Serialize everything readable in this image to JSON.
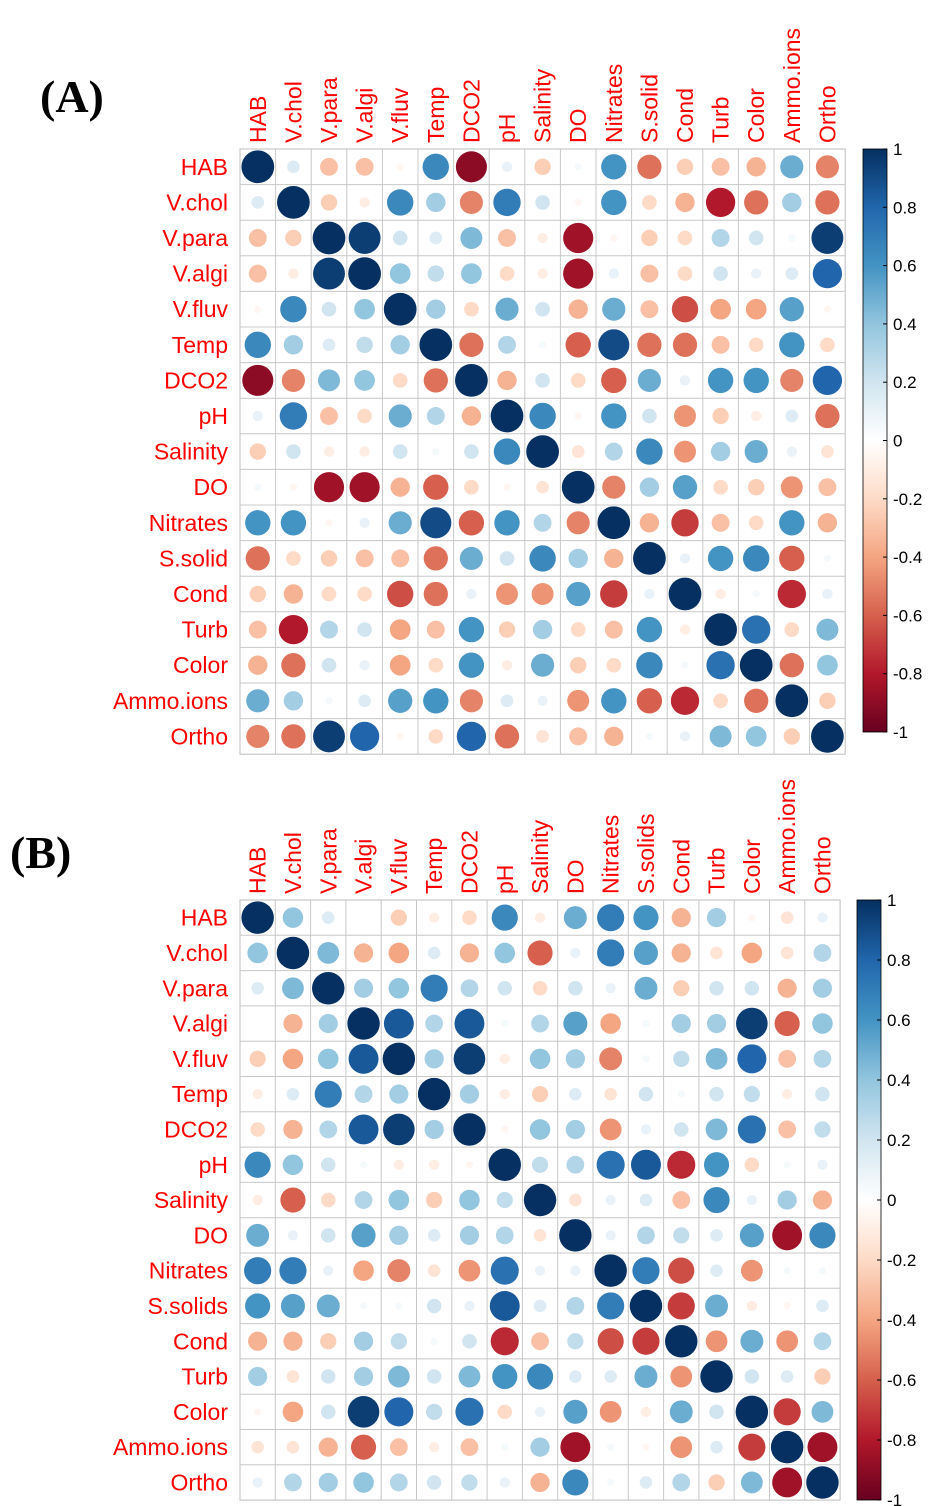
{
  "panels": [
    {
      "label": "(A)",
      "chart_data": {
        "type": "heatmap",
        "subtype": "correlation-circle-matrix",
        "columns": [
          "HAB",
          "V.chol",
          "V.para",
          "V.algi",
          "V.fluv",
          "Temp",
          "DCO2",
          "pH",
          "Salinity",
          "DO",
          "Nitrates",
          "S.solid",
          "Cond",
          "Turb",
          "Color",
          "Ammo.ions",
          "Ortho"
        ],
        "rows": [
          "HAB",
          "V.chol",
          "V.para",
          "V.algi",
          "V.fluv",
          "Temp",
          "DCO2",
          "pH",
          "Salinity",
          "DO",
          "Nitrates",
          "S.solid",
          "Cond",
          "Turb",
          "Color",
          "Ammo.ions",
          "Ortho"
        ],
        "values": [
          [
            1,
            0.15,
            -0.3,
            -0.3,
            -0.05,
            0.65,
            -0.9,
            0.1,
            -0.25,
            0.05,
            0.6,
            -0.55,
            -0.25,
            -0.3,
            -0.35,
            0.5,
            -0.5
          ],
          [
            0.15,
            1,
            -0.25,
            -0.1,
            0.65,
            0.35,
            -0.5,
            0.7,
            0.2,
            -0.05,
            0.6,
            -0.2,
            -0.35,
            -0.8,
            -0.55,
            0.35,
            -0.55
          ],
          [
            -0.3,
            -0.25,
            1,
            0.95,
            0.2,
            0.15,
            0.45,
            -0.3,
            -0.1,
            -0.85,
            -0.05,
            -0.25,
            -0.2,
            0.3,
            0.2,
            0.05,
            0.95
          ],
          [
            -0.3,
            -0.1,
            0.95,
            1,
            0.4,
            0.25,
            0.4,
            -0.2,
            -0.1,
            -0.85,
            0.1,
            -0.3,
            -0.2,
            0.2,
            0.1,
            0.15,
            0.8
          ],
          [
            -0.05,
            0.65,
            0.2,
            0.4,
            1,
            0.35,
            -0.2,
            0.5,
            0.2,
            -0.35,
            0.5,
            -0.3,
            -0.65,
            -0.4,
            -0.4,
            0.55,
            -0.05
          ],
          [
            0.65,
            0.35,
            0.15,
            0.25,
            0.35,
            1,
            -0.55,
            0.3,
            0.05,
            -0.6,
            0.9,
            -0.55,
            -0.55,
            -0.3,
            -0.2,
            0.6,
            -0.2
          ],
          [
            -0.9,
            -0.5,
            0.45,
            0.4,
            -0.2,
            -0.55,
            1,
            -0.35,
            0.2,
            -0.2,
            -0.6,
            0.5,
            0.1,
            0.6,
            0.6,
            -0.5,
            0.8
          ],
          [
            0.1,
            0.7,
            -0.3,
            -0.2,
            0.5,
            0.3,
            -0.35,
            1,
            0.65,
            -0.05,
            0.6,
            0.2,
            -0.45,
            -0.25,
            -0.1,
            0.15,
            -0.55
          ],
          [
            -0.25,
            0.2,
            -0.1,
            -0.1,
            0.2,
            0.05,
            0.2,
            0.65,
            1,
            -0.15,
            0.3,
            0.65,
            -0.45,
            0.35,
            0.5,
            0.1,
            -0.15
          ],
          [
            0.05,
            -0.05,
            -0.85,
            -0.85,
            -0.35,
            -0.6,
            -0.2,
            -0.05,
            -0.15,
            1,
            -0.5,
            0.35,
            0.55,
            -0.2,
            -0.25,
            -0.45,
            -0.3
          ],
          [
            0.6,
            0.6,
            -0.05,
            0.1,
            0.5,
            0.9,
            -0.6,
            0.6,
            0.3,
            -0.5,
            1,
            -0.35,
            -0.7,
            -0.3,
            -0.2,
            0.6,
            -0.35
          ],
          [
            -0.55,
            -0.2,
            -0.25,
            -0.3,
            -0.3,
            -0.55,
            0.5,
            0.2,
            0.65,
            0.35,
            -0.35,
            1,
            0.1,
            0.6,
            0.65,
            -0.6,
            0.05
          ],
          [
            -0.25,
            -0.35,
            -0.2,
            -0.2,
            -0.65,
            -0.55,
            0.1,
            -0.45,
            -0.45,
            0.55,
            -0.7,
            0.1,
            1,
            -0.1,
            0.05,
            -0.75,
            0.1
          ],
          [
            -0.3,
            -0.8,
            0.3,
            0.2,
            -0.4,
            -0.3,
            0.6,
            -0.25,
            0.35,
            -0.2,
            -0.3,
            0.6,
            -0.1,
            1,
            0.75,
            -0.2,
            0.45
          ],
          [
            -0.35,
            -0.55,
            0.2,
            0.1,
            -0.4,
            -0.2,
            0.6,
            -0.1,
            0.5,
            -0.25,
            -0.2,
            0.65,
            0.05,
            0.75,
            1,
            -0.55,
            0.4
          ],
          [
            0.5,
            0.35,
            0.05,
            0.15,
            0.55,
            0.6,
            -0.5,
            0.15,
            0.1,
            -0.45,
            0.6,
            -0.6,
            -0.75,
            -0.2,
            -0.55,
            1,
            -0.25
          ],
          [
            -0.5,
            -0.55,
            0.95,
            0.8,
            -0.05,
            -0.2,
            0.8,
            -0.55,
            -0.15,
            -0.3,
            -0.35,
            0.05,
            0.1,
            0.45,
            0.4,
            -0.25,
            1
          ]
        ],
        "colorbar": {
          "min": -1,
          "max": 1,
          "ticks": [
            "1",
            "0.8",
            "0.6",
            "0.4",
            "0.2",
            "0",
            "-0.2",
            "-0.4",
            "-0.6",
            "-0.8",
            "-1"
          ]
        }
      }
    },
    {
      "label": "(B)",
      "chart_data": {
        "type": "heatmap",
        "subtype": "correlation-circle-matrix",
        "columns": [
          "HAB",
          "V.chol",
          "V.para",
          "V.algi",
          "V.fluv",
          "Temp",
          "DCO2",
          "pH",
          "Salinity",
          "DO",
          "Nitrates",
          "S.solids",
          "Cond",
          "Turb",
          "Color",
          "Ammo.ions",
          "Ortho"
        ],
        "rows": [
          "HAB",
          "V.chol",
          "V.para",
          "V.algi",
          "V.fluv",
          "Temp",
          "DCO2",
          "pH",
          "Salinity",
          "DO",
          "Nitrates",
          "S.solids",
          "Cond",
          "Turb",
          "Color",
          "Ammo.ions",
          "Ortho"
        ],
        "values": [
          [
            1,
            0.4,
            0.15,
            0,
            -0.25,
            -0.1,
            -0.2,
            0.65,
            -0.1,
            0.5,
            0.7,
            0.6,
            -0.35,
            0.35,
            -0.05,
            -0.15,
            0.1
          ],
          [
            0.4,
            1,
            0.45,
            -0.35,
            -0.4,
            0.15,
            -0.35,
            0.4,
            -0.6,
            0.1,
            0.7,
            0.55,
            -0.35,
            -0.15,
            -0.4,
            -0.15,
            0.3
          ],
          [
            0.15,
            0.45,
            1,
            0.35,
            0.4,
            0.7,
            0.3,
            0.2,
            -0.2,
            0.2,
            0.1,
            0.5,
            -0.25,
            0.2,
            0.2,
            -0.35,
            0.35
          ],
          [
            0,
            -0.35,
            0.35,
            1,
            0.85,
            0.3,
            0.85,
            0.05,
            0.3,
            0.55,
            -0.4,
            0.05,
            0.35,
            0.35,
            0.95,
            -0.6,
            0.4
          ],
          [
            -0.25,
            -0.4,
            0.4,
            0.85,
            1,
            0.35,
            0.95,
            -0.1,
            0.4,
            0.35,
            -0.5,
            0.05,
            0.25,
            0.45,
            0.8,
            -0.3,
            0.3
          ],
          [
            -0.1,
            0.15,
            0.7,
            0.3,
            0.35,
            1,
            0.35,
            -0.1,
            -0.25,
            0.15,
            -0.15,
            0.2,
            0.05,
            0.2,
            0.25,
            -0.1,
            0.2
          ],
          [
            -0.2,
            -0.35,
            0.3,
            0.85,
            0.95,
            0.35,
            1,
            -0.05,
            0.4,
            0.35,
            -0.45,
            0.1,
            0.2,
            0.45,
            0.75,
            -0.3,
            0.25
          ],
          [
            0.65,
            0.4,
            0.2,
            0.05,
            -0.1,
            -0.1,
            -0.05,
            1,
            0.25,
            0.3,
            0.75,
            0.85,
            -0.75,
            0.6,
            -0.2,
            0.05,
            0.1
          ],
          [
            -0.1,
            -0.6,
            -0.2,
            0.3,
            0.4,
            -0.25,
            0.4,
            0.25,
            1,
            -0.15,
            0.1,
            0.15,
            -0.3,
            0.65,
            0.1,
            0.35,
            -0.35
          ],
          [
            0.5,
            0.1,
            0.2,
            0.55,
            0.35,
            0.15,
            0.35,
            0.3,
            -0.15,
            1,
            0.1,
            0.3,
            0.25,
            0.15,
            0.55,
            -0.85,
            0.65
          ],
          [
            0.7,
            0.7,
            0.1,
            -0.4,
            -0.5,
            -0.15,
            -0.45,
            0.75,
            0.1,
            0.1,
            1,
            0.7,
            -0.65,
            0.15,
            -0.45,
            0.05,
            0.05
          ],
          [
            0.6,
            0.55,
            0.5,
            0.05,
            0.05,
            0.2,
            0.1,
            0.85,
            0.15,
            0.3,
            0.7,
            1,
            -0.7,
            0.5,
            -0.1,
            -0.05,
            0.15
          ],
          [
            -0.35,
            -0.35,
            -0.25,
            0.35,
            0.25,
            0.05,
            0.2,
            -0.75,
            -0.3,
            0.25,
            -0.65,
            -0.7,
            1,
            -0.45,
            0.5,
            -0.45,
            0.3
          ],
          [
            0.35,
            -0.15,
            0.2,
            0.35,
            0.45,
            0.2,
            0.45,
            0.6,
            0.65,
            0.15,
            0.15,
            0.5,
            -0.45,
            1,
            0.2,
            0.15,
            -0.25
          ],
          [
            -0.05,
            -0.4,
            0.2,
            0.95,
            0.8,
            0.25,
            0.75,
            -0.2,
            0.1,
            0.55,
            -0.45,
            -0.1,
            0.5,
            0.2,
            1,
            -0.7,
            0.45
          ],
          [
            -0.15,
            -0.15,
            -0.35,
            -0.6,
            -0.3,
            -0.1,
            -0.3,
            0.05,
            0.35,
            -0.85,
            0.05,
            -0.05,
            -0.45,
            0.15,
            -0.7,
            1,
            -0.85
          ],
          [
            0.1,
            0.3,
            0.35,
            0.4,
            0.3,
            0.2,
            0.25,
            0.1,
            -0.35,
            0.65,
            0.05,
            0.15,
            0.3,
            -0.25,
            0.45,
            -0.85,
            1
          ]
        ],
        "colorbar": {
          "min": -1,
          "max": 1,
          "ticks": [
            "1",
            "0.8",
            "0.6",
            "0.4",
            "0.2",
            "0",
            "-0.2",
            "-0.4",
            "-0.6",
            "-0.8",
            "-1"
          ]
        }
      }
    }
  ]
}
